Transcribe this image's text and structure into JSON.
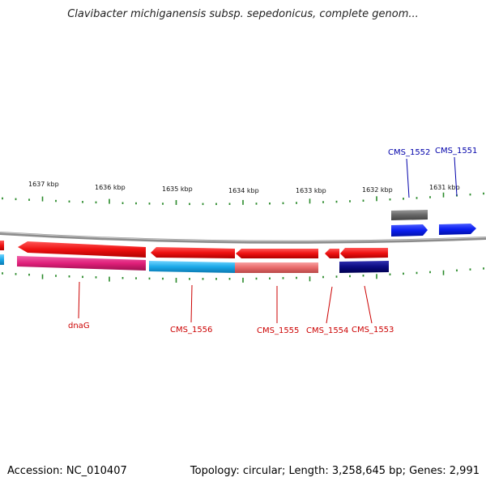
{
  "title": "Clavibacter michiganensis subsp. sepedonicus, complete genom...",
  "footer": {
    "accession": "Accession: NC_010407",
    "info": "Topology: circular; Length: 3,258,645 bp; Genes: 2,991"
  },
  "colors": {
    "tick": "#2a8a2a",
    "backbone": "#8c8c8c",
    "label_red": "#cc0000",
    "label_blue": "#0000aa"
  },
  "ruler": [
    "1637 kbp",
    "1636 kbp",
    "1635 kbp",
    "1634 kbp",
    "1633 kbp",
    "1632 kbp",
    "1631 kbp"
  ],
  "genes": [
    {
      "name": "dnaG",
      "color": "#ee1111",
      "strand": "minus"
    },
    {
      "name": "CMS_1556",
      "color": "#ee1111",
      "strand": "minus"
    },
    {
      "name": "CMS_1555",
      "color": "#ee1111",
      "strand": "minus"
    },
    {
      "name": "CMS_1554",
      "color": "#ee1111",
      "strand": "minus"
    },
    {
      "name": "CMS_1553",
      "color": "#ee1111",
      "strand": "minus"
    },
    {
      "name": "CMS_1552",
      "color": "#0a1ef0",
      "strand": "plus"
    },
    {
      "name": "CMS_1551",
      "color": "#0a1ef0",
      "strand": "plus"
    }
  ],
  "features": [
    {
      "color": "#e0207a"
    },
    {
      "color": "#1aa8e8"
    },
    {
      "color": "#e86a6a"
    },
    {
      "color": "#0a0a80"
    },
    {
      "color": "#606060"
    }
  ]
}
